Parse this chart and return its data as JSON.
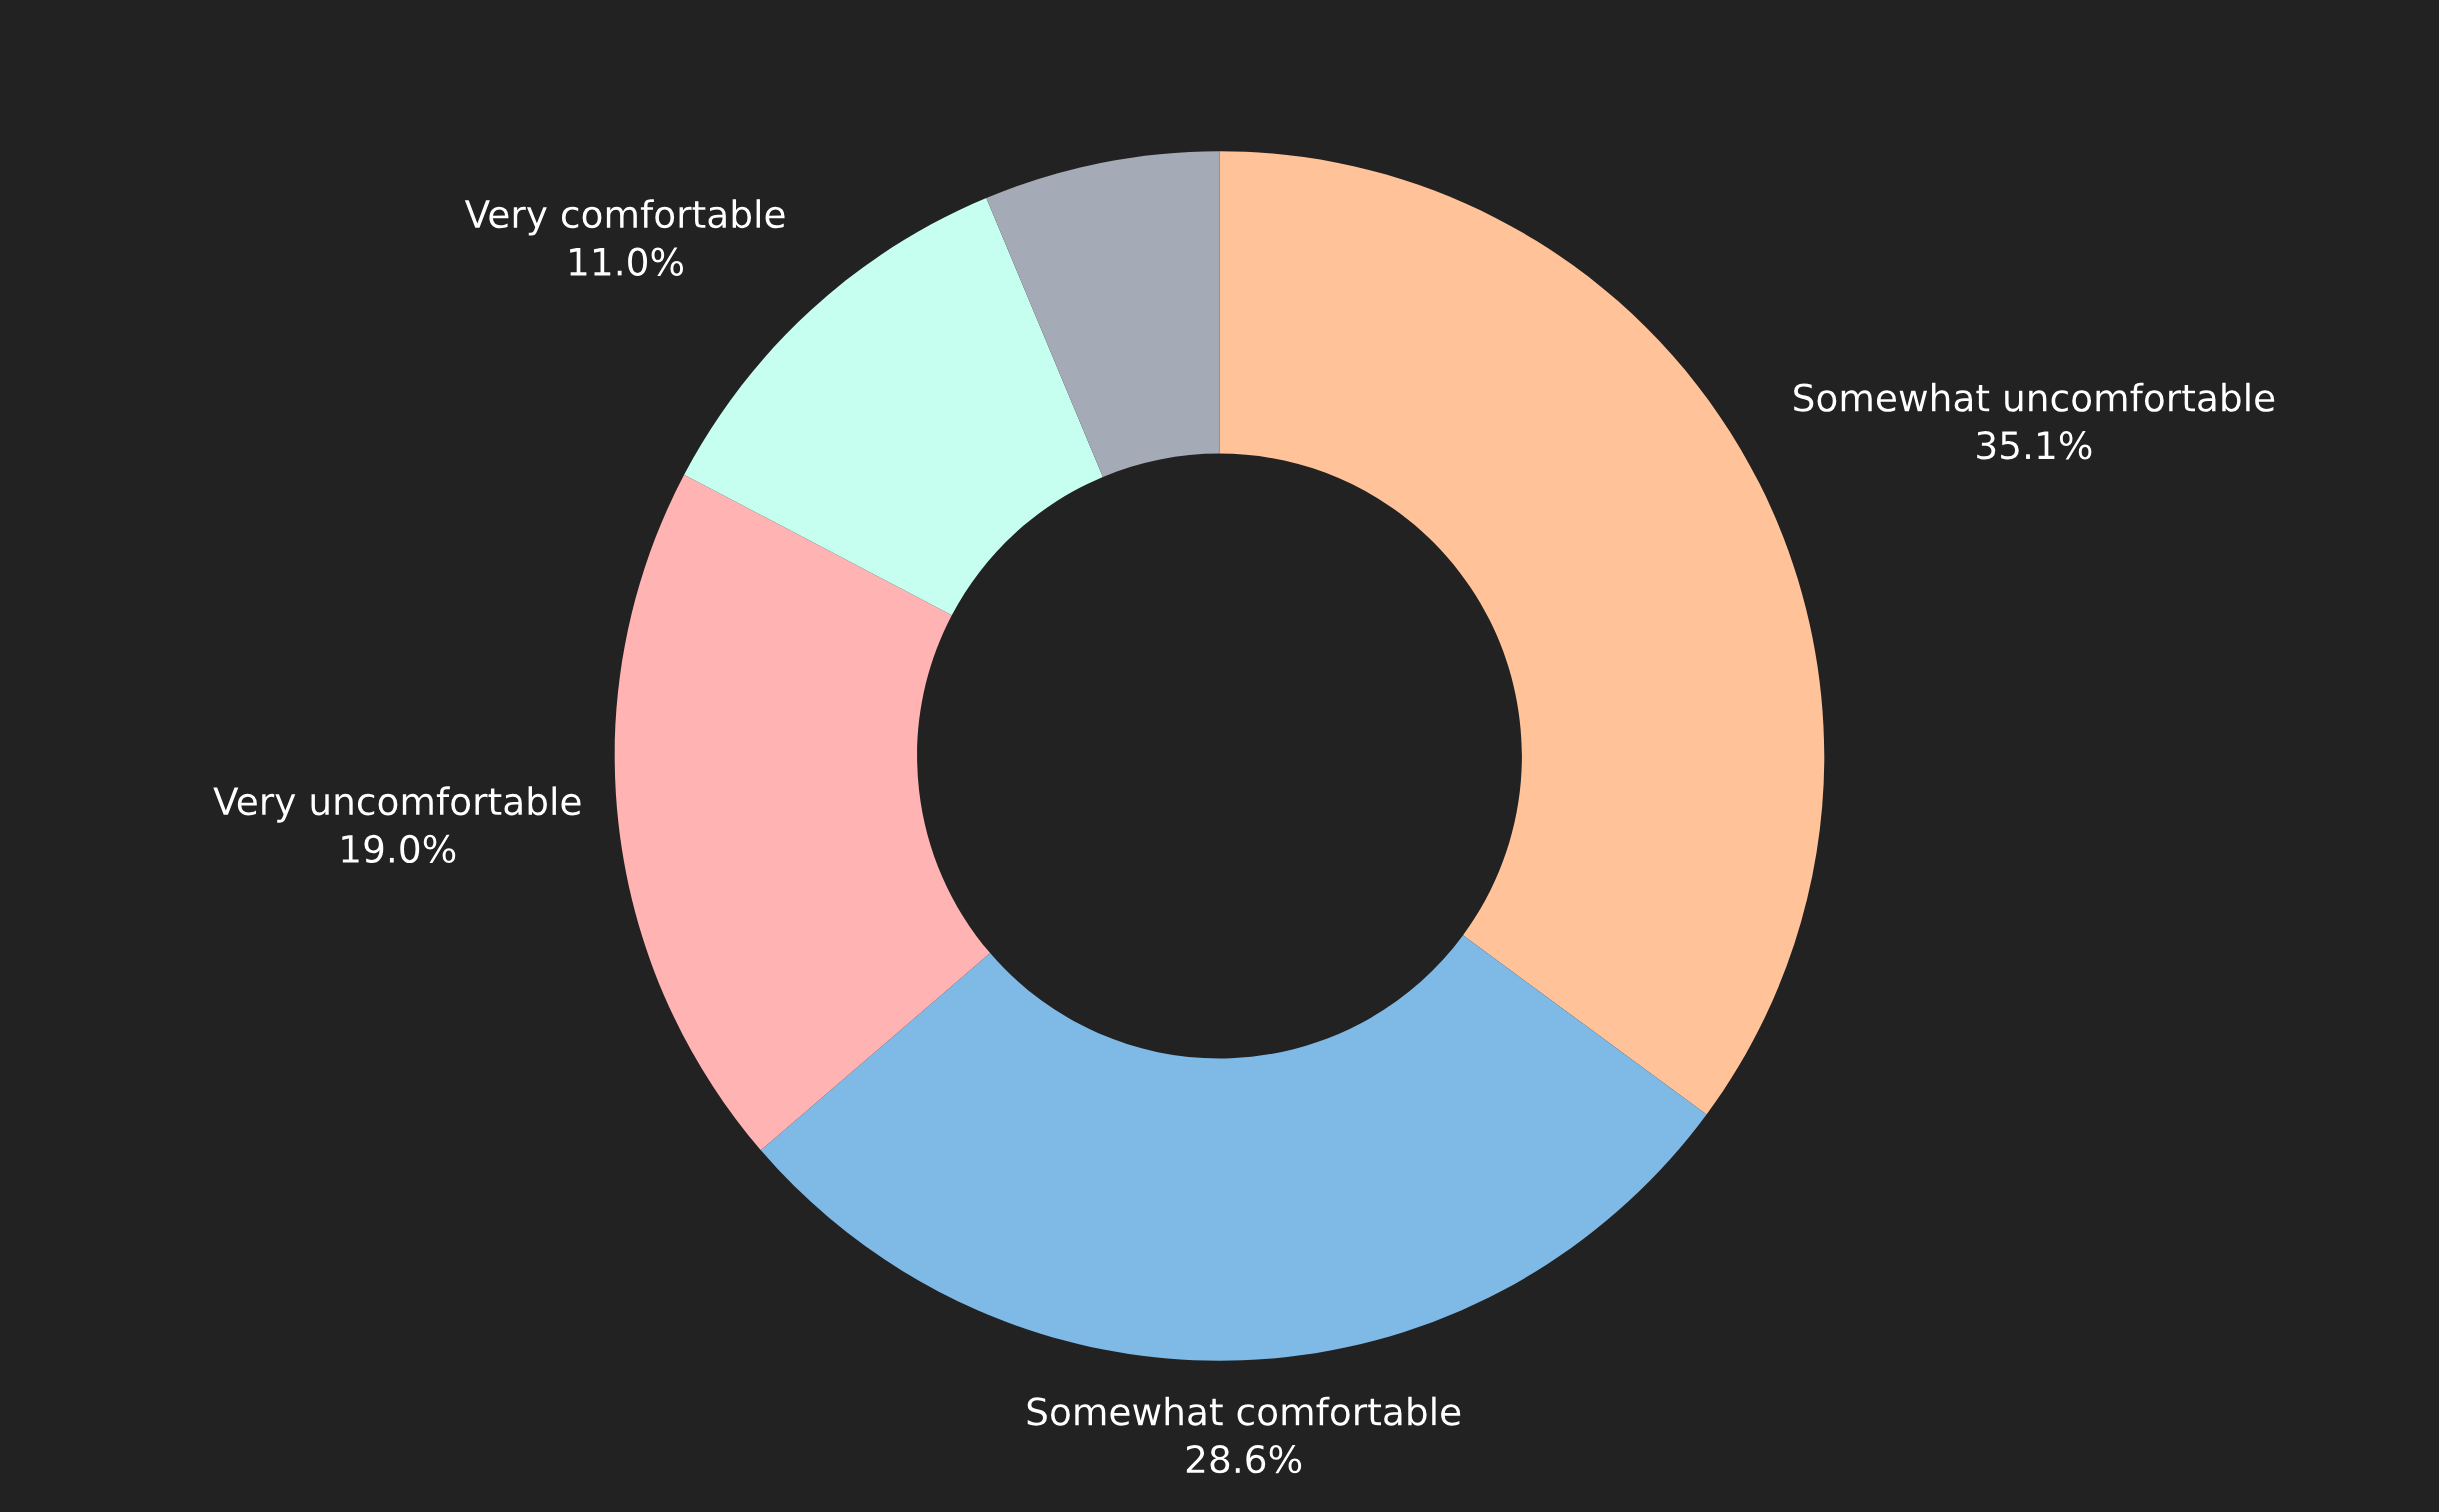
{
  "chart_data": {
    "type": "donut",
    "categories": [
      "Somewhat uncomfortable",
      "Somewhat comfortable",
      "Very uncomfortable",
      "Very comfortable",
      null
    ],
    "values": [
      35.1,
      28.6,
      19.0,
      11.0,
      6.3
    ],
    "value_labels": [
      "35.1%",
      "28.6%",
      "19.0%",
      "11.0%",
      null
    ],
    "colors": [
      "#ffc299",
      "#7fb9e6",
      "#ffb3b3",
      "#c6fff0",
      "#a4abb6"
    ],
    "legend": false
  }
}
